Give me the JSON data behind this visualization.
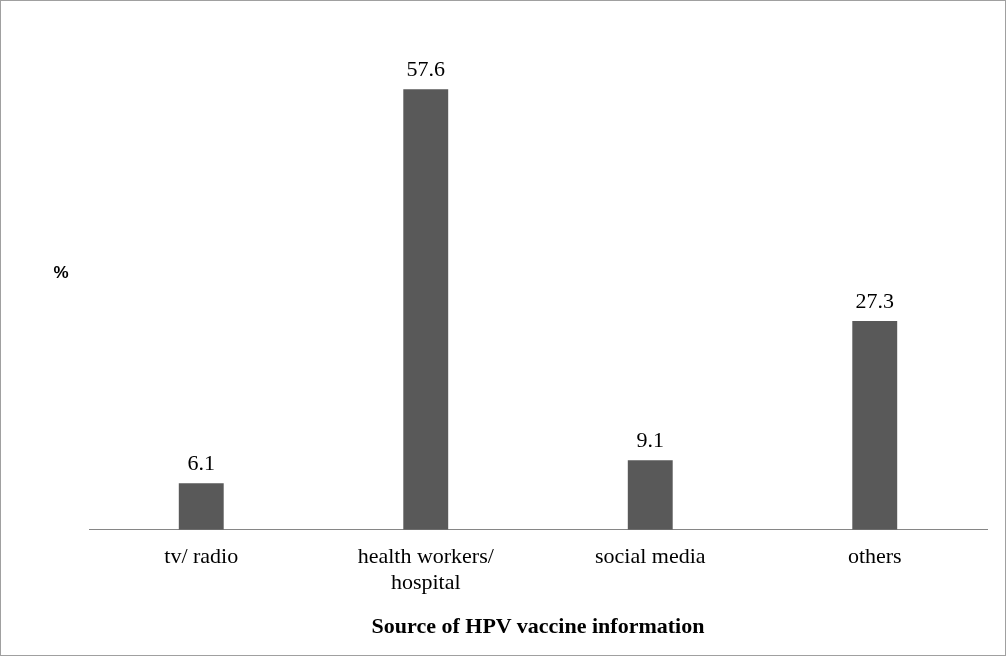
{
  "chart_data": {
    "type": "bar",
    "xlabel": "Source of HPV vaccine information",
    "ylabel": "%",
    "categories": [
      "tv/ radio",
      "health workers/ hospital",
      "social media",
      "others"
    ],
    "values": [
      6.1,
      57.6,
      9.1,
      27.3
    ],
    "color": "#595959",
    "relative": false,
    "data_labels": true,
    "grid": false,
    "legend": false
  }
}
